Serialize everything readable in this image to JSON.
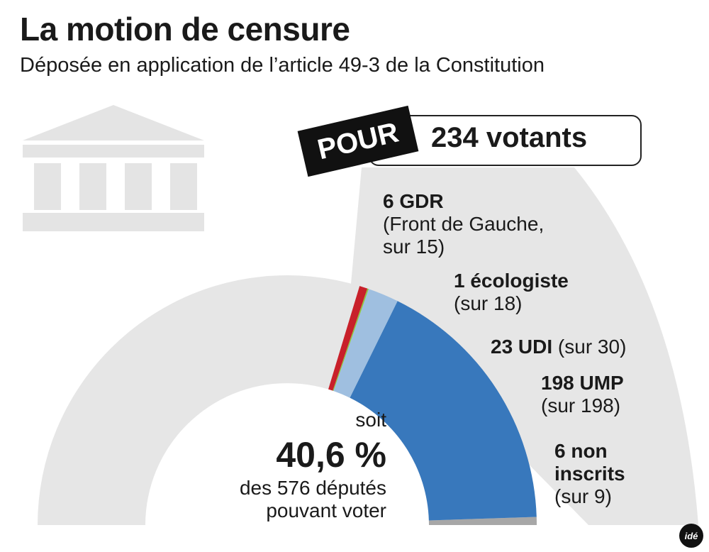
{
  "title": "La motion de censure",
  "subtitle": "Déposée en application de l’article 49-3 de la Constitution",
  "badge": "POUR",
  "votants": "234 votants",
  "center": {
    "soit": "soit",
    "percent": "40,6 %",
    "line1": "des 576 députés",
    "line2": "pouvant voter"
  },
  "labels": {
    "gdr": {
      "bold": "6 GDR",
      "line2": "(Front de Gauche,",
      "line3": "sur 15)"
    },
    "eco": {
      "bold": "1 écologiste",
      "line2": "(sur 18)"
    },
    "udi": {
      "bold": "23 UDI",
      "rest": " (sur 30)"
    },
    "ump": {
      "bold": "198 UMP",
      "line2": "(sur 198)"
    },
    "ni": {
      "bold1": "6 non",
      "bold2": "inscrits",
      "line3": "(sur 9)"
    }
  },
  "chart_data": {
    "type": "pie",
    "total_seats": 576,
    "total_for": 234,
    "percent_for": 40.6,
    "series": [
      {
        "name": "GDR",
        "for": 6,
        "of": 15,
        "color_for": "#c8202a"
      },
      {
        "name": "écologiste",
        "for": 1,
        "of": 18,
        "color_for": "#8dc63f"
      },
      {
        "name": "UDI",
        "for": 23,
        "of": 30,
        "color_for": "#9fbfe0"
      },
      {
        "name": "UMP",
        "for": 198,
        "of": 198,
        "color_for": "#3878bc"
      },
      {
        "name": "non inscrits",
        "for": 6,
        "of": 9,
        "color_for": "#a7a7a7"
      }
    ],
    "colors": {
      "base": "#e6e6e6",
      "rest": "#dcdcdc"
    }
  },
  "logo": "idé"
}
